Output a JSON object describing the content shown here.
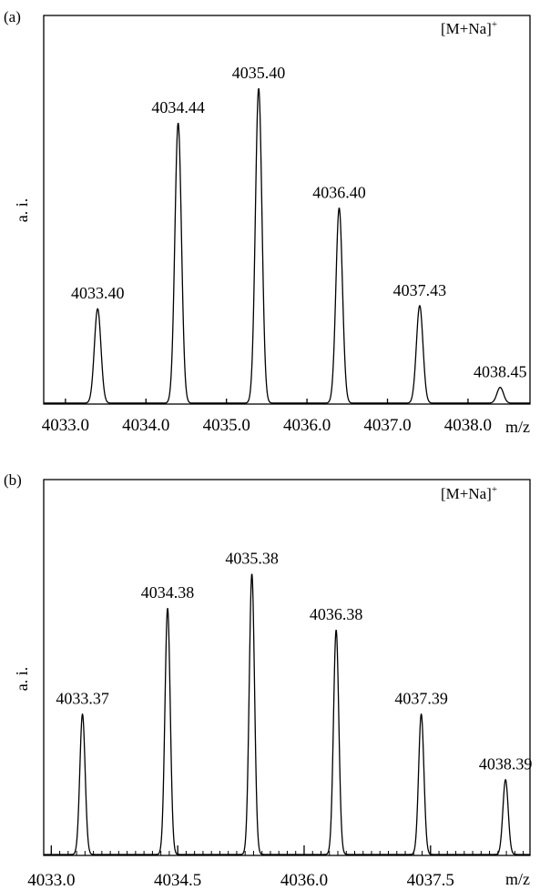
{
  "chart_data": [
    {
      "type": "line",
      "panel": "(a)",
      "ion_label": "[M+Na]",
      "ion_charge": "+",
      "ylabel": "a. i.",
      "xunit": "m/z",
      "xlim": [
        4032.73,
        4038.77
      ],
      "ylim": [
        0,
        1
      ],
      "xticks": [
        4033.0,
        4034.0,
        4035.0,
        4036.0,
        4037.0,
        4038.0
      ],
      "xtick_labels": [
        "4033.0",
        "4034.0",
        "4035.0",
        "4036.0",
        "4037.0",
        "4038.0"
      ],
      "minor_ticks": false,
      "grid": false,
      "peaks": [
        {
          "x": 4033.4,
          "y": 0.3,
          "label": "4033.40"
        },
        {
          "x": 4034.4,
          "y": 0.89,
          "label": "4034.44"
        },
        {
          "x": 4035.4,
          "y": 1.0,
          "label": "4035.40"
        },
        {
          "x": 4036.4,
          "y": 0.62,
          "label": "4036.40"
        },
        {
          "x": 4037.4,
          "y": 0.31,
          "label": "4037.43"
        },
        {
          "x": 4038.4,
          "y": 0.05,
          "label": "4038.45"
        }
      ]
    },
    {
      "type": "line",
      "panel": "(b)",
      "ion_label": "[M+Na]",
      "ion_charge": "+",
      "ylabel": "a. i.",
      "xunit": "m/z",
      "xlim": [
        4032.91,
        4038.68
      ],
      "ylim": [
        0,
        1
      ],
      "xticks": [
        4033.0,
        4034.5,
        4036.0,
        4037.5
      ],
      "xtick_labels": [
        "4033.0",
        "4034.5",
        "4036.0",
        "4037.5"
      ],
      "minor_ticks": true,
      "minor_step": 0.1,
      "grid": false,
      "peaks": [
        {
          "x": 4033.37,
          "y": 0.45,
          "label": "4033.37"
        },
        {
          "x": 4034.38,
          "y": 0.79,
          "label": "4034.38"
        },
        {
          "x": 4035.38,
          "y": 0.9,
          "label": "4035.38"
        },
        {
          "x": 4036.38,
          "y": 0.72,
          "label": "4036.38"
        },
        {
          "x": 4037.39,
          "y": 0.45,
          "label": "4037.39"
        },
        {
          "x": 4038.39,
          "y": 0.24,
          "label": "4038.39"
        }
      ]
    }
  ]
}
